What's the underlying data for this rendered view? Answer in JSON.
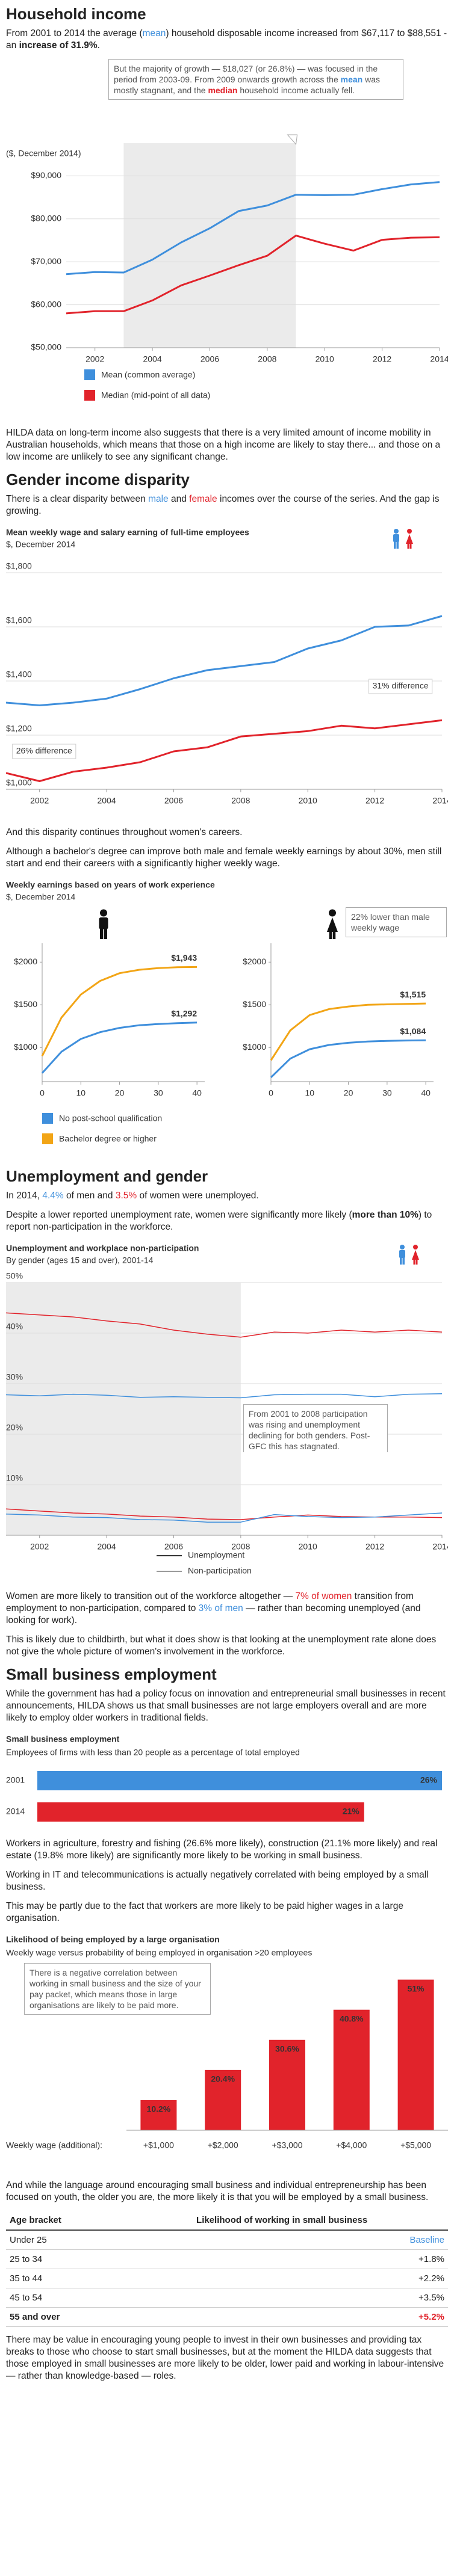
{
  "sections": [
    {
      "heading": "Household income",
      "paragraphs": [
        [
          "From 2001 to 2014 the average (",
          {
            "text": "mean",
            "color": "#3f8fdc"
          },
          ") household disposable income increased from $67,117 to $88,551 - an ",
          {
            "text": "increase of 31.9%",
            "bold": true
          },
          "."
        ],
        [
          "HILDA data on long-term income also suggests that there is a very limited amount of income mobility in Australian households, which means that those on a high income are likely to stay there... and those on a low income are unlikely to see any significant change."
        ]
      ]
    },
    {
      "heading": "Gender income disparity",
      "paragraphs": [
        [
          "There is a clear disparity between ",
          {
            "text": "male",
            "color": "#3f8fdc"
          },
          " and ",
          {
            "text": "female",
            "color": "#e1232b"
          },
          " incomes over the course of the series. And the gap is growing."
        ],
        [
          "And this disparity continues throughout women's careers."
        ],
        [
          "Although a bachelor's degree can improve both male and female weekly earnings by about 30%, men still start and end their careers with a significantly higher weekly wage."
        ]
      ]
    },
    {
      "heading": "Unemployment and gender",
      "paragraphs": [
        [
          "In 2014, ",
          {
            "text": "4.4%",
            "color": "#3f8fdc"
          },
          " of men and ",
          {
            "text": "3.5%",
            "color": "#e1232b"
          },
          " of women were unemployed."
        ],
        [
          "Despite a lower reported unemployment rate, women were significantly more likely (",
          {
            "text": "more than 10%",
            "bold": true
          },
          ") to report non-participation in the workforce."
        ],
        [
          "Women are more likely to transition out of the workforce altogether — ",
          {
            "text": "7% of women",
            "color": "#e1232b"
          },
          " transition from employment to non-participation, compared to ",
          {
            "text": "3% of men",
            "color": "#3f8fdc"
          },
          " — rather than becoming unemployed (and looking for work)."
        ],
        [
          "This is likely due to childbirth, but what it does show is that looking at the unemployment rate alone does not give the whole picture of women's involvement in the workforce."
        ]
      ]
    },
    {
      "heading": "Small business employment",
      "paragraphs": [
        [
          "While the government has had a policy focus on innovation and entrepreneurial small businesses in recent announcements, HILDA shows us that small businesses are not large employers overall and are more likely to employ older workers in traditional fields."
        ],
        [
          "Workers in agriculture, forestry and fishing (26.6% more likely), construction (21.1% more likely) and real estate (19.8% more likely) are significantly more likely to be working in small business."
        ],
        [
          "Working in IT and telecommunications is actually negatively correlated with being employed by a small business."
        ],
        [
          "This may be partly due to the fact that workers are more likely to be paid higher wages in a large organisation."
        ],
        [
          "And while the language around encouraging small business and individual entrepreneurship has been focused on youth, the older you are, the more likely it is that you will be employed by a small business."
        ],
        [
          "There may be value in encouraging young people to invest in their own businesses and providing tax breaks to those who choose to start small businesses, but at the moment the HILDA data suggests that those employed in small businesses are more likely to be older, lower paid and working in labour-intensive — rather than knowledge-based — roles."
        ]
      ]
    }
  ],
  "chart_data": [
    {
      "type": "line",
      "axis_label": "($, December 2014)",
      "annotation": [
        "But the majority of growth — $18,027 (or 26.8%) — was focused in the period from 2003-09. From 2009 onwards growth across the ",
        {
          "text": "mean",
          "color": "#3f8fdc",
          "bold": true
        },
        " was mostly stagnant, and the ",
        {
          "text": "median",
          "color": "#e1232b",
          "bold": true
        },
        " household income actually fell."
      ],
      "x": [
        2001,
        2002,
        2003,
        2004,
        2005,
        2006,
        2007,
        2008,
        2009,
        2010,
        2011,
        2012,
        2013,
        2014
      ],
      "series": [
        {
          "name": "Mean (common average)",
          "color": "#3f8fdc",
          "values": [
            67117,
            67600,
            67500,
            70500,
            74500,
            77800,
            81800,
            83100,
            85600,
            85500,
            85600,
            86900,
            88000,
            88551
          ]
        },
        {
          "name": "Median (mid-point of all data)",
          "color": "#e1232b",
          "values": [
            58000,
            58500,
            58500,
            61000,
            64500,
            66800,
            69200,
            71400,
            76100,
            74200,
            72600,
            75100,
            75600,
            75700
          ]
        }
      ],
      "shade": [
        2003,
        2009
      ],
      "xlim": [
        2001,
        2014
      ],
      "xticks": [
        2002,
        2004,
        2006,
        2008,
        2010,
        2012,
        2014
      ],
      "ylim": [
        50000,
        92000
      ],
      "yticks": [
        {
          "value": 50000,
          "label": "$50,000"
        },
        {
          "value": 60000,
          "label": "$60,000"
        },
        {
          "value": 70000,
          "label": "$70,000"
        },
        {
          "value": 80000,
          "label": "$80,000"
        },
        {
          "value": 90000,
          "label": "$90,000"
        }
      ],
      "grid": true
    },
    {
      "type": "line",
      "title": "Mean weekly wage and salary earning of full-time employees",
      "subtitle": "$, December 2014",
      "annotations": [
        "26% difference",
        "31% difference"
      ],
      "x": [
        2001,
        2002,
        2003,
        2004,
        2005,
        2006,
        2007,
        2008,
        2009,
        2010,
        2011,
        2012,
        2013,
        2014
      ],
      "series": [
        {
          "color": "#3f8fdc",
          "values": [
            1320,
            1310,
            1320,
            1335,
            1370,
            1410,
            1440,
            1455,
            1470,
            1520,
            1550,
            1600,
            1605,
            1640
          ]
        },
        {
          "color": "#e1232b",
          "values": [
            1060,
            1030,
            1065,
            1080,
            1100,
            1140,
            1155,
            1195,
            1205,
            1215,
            1235,
            1225,
            1240,
            1255
          ]
        }
      ],
      "xlim": [
        2001,
        2014
      ],
      "xticks": [
        2002,
        2004,
        2006,
        2008,
        2010,
        2012,
        2014
      ],
      "ylim": [
        1000,
        1800
      ],
      "yticks": [
        {
          "value": 1000,
          "label": "$1,000"
        },
        {
          "value": 1200,
          "label": "$1,200"
        },
        {
          "value": 1400,
          "label": "$1,400"
        },
        {
          "value": 1600,
          "label": "$1,600"
        },
        {
          "value": 1800,
          "label": "$1,800"
        }
      ],
      "grid": true
    },
    {
      "type": "line",
      "title": "Weekly earnings based on years of work experience",
      "subtitle": "$, December 2014",
      "x": [
        0,
        5,
        10,
        15,
        20,
        25,
        30,
        35,
        40
      ],
      "series": [
        {
          "name": "No post-school qualification",
          "color": "#3f8fdc",
          "values": [
            700,
            950,
            1100,
            1180,
            1230,
            1260,
            1275,
            1285,
            1292
          ],
          "value_labels": [
            null,
            null,
            null,
            null,
            null,
            null,
            null,
            null,
            "$1,292"
          ]
        },
        {
          "name": "Bachelor degree or higher",
          "color": "#f2a516",
          "values": [
            900,
            1350,
            1620,
            1780,
            1870,
            1910,
            1930,
            1940,
            1943
          ],
          "value_labels": [
            null,
            null,
            null,
            null,
            null,
            null,
            null,
            null,
            "$1,943"
          ]
        }
      ],
      "xlim": [
        0,
        42
      ],
      "xticks": [
        0,
        10,
        20,
        30,
        40
      ],
      "ylim": [
        600,
        2150
      ],
      "yticks": [
        {
          "value": 1000,
          "label": "$1000"
        },
        {
          "value": 1500,
          "label": "$1500"
        },
        {
          "value": 2000,
          "label": "$2000"
        }
      ],
      "grid": false
    },
    {
      "type": "line",
      "annotation": "22% lower than male weekly wage",
      "x": [
        0,
        5,
        10,
        15,
        20,
        25,
        30,
        35,
        40
      ],
      "series": [
        {
          "color": "#3f8fdc",
          "values": [
            650,
            870,
            980,
            1030,
            1055,
            1070,
            1078,
            1082,
            1084
          ],
          "value_labels": [
            null,
            null,
            null,
            null,
            null,
            null,
            null,
            null,
            "$1,084"
          ]
        },
        {
          "color": "#f2a516",
          "values": [
            850,
            1200,
            1380,
            1450,
            1480,
            1500,
            1505,
            1510,
            1515
          ],
          "value_labels": [
            null,
            null,
            null,
            null,
            null,
            null,
            null,
            null,
            "$1,515"
          ]
        }
      ],
      "xlim": [
        0,
        42
      ],
      "xticks": [
        0,
        10,
        20,
        30,
        40
      ],
      "ylim": [
        600,
        2150
      ],
      "yticks": [
        {
          "value": 1000,
          "label": "$1000"
        },
        {
          "value": 1500,
          "label": "$1500"
        },
        {
          "value": 2000,
          "label": "$2000"
        }
      ],
      "grid": false
    },
    {
      "type": "line",
      "title": "Unemployment and workplace non-participation",
      "subtitle": "By gender (ages 15 and over), 2001-14",
      "annotation": "From 2001 to 2008 participation was rising and unemployment declining for both genders. Post-GFC this has stagnated.",
      "legend": [
        {
          "label": "Unemployment",
          "color": "#333333"
        },
        {
          "label": "Non-participation",
          "color": "#9a9a9a"
        }
      ],
      "x": [
        2001,
        2002,
        2003,
        2004,
        2005,
        2006,
        2007,
        2008,
        2009,
        2010,
        2011,
        2012,
        2013,
        2014
      ],
      "series": [
        {
          "color": "#e1232b",
          "values": [
            44,
            43.6,
            43.2,
            42.4,
            41.8,
            40.6,
            39.8,
            39.2,
            40.2,
            40,
            40.6,
            40.2,
            40.6,
            40.2
          ]
        },
        {
          "color": "#3f8fdc",
          "values": [
            27.8,
            27.6,
            27.9,
            27.7,
            27.3,
            27.4,
            27.3,
            27.2,
            27.8,
            27.9,
            27.9,
            27.4,
            27.9,
            28
          ]
        },
        {
          "color": "#e1232b",
          "values": [
            5.2,
            4.8,
            4.4,
            4.2,
            3.8,
            3.6,
            3.2,
            3.1,
            3.6,
            4,
            3.7,
            3.6,
            3.6,
            3.5
          ]
        },
        {
          "color": "#3f8fdc",
          "values": [
            4.2,
            4,
            3.6,
            3.5,
            3.1,
            3,
            2.6,
            2.6,
            4.1,
            3.7,
            3.5,
            3.6,
            4,
            4.4
          ]
        }
      ],
      "shade": [
        2001,
        2008
      ],
      "xlim": [
        2001,
        2014
      ],
      "xticks": [
        2002,
        2004,
        2006,
        2008,
        2010,
        2012,
        2014
      ],
      "ylim": [
        0,
        50
      ],
      "yticks": [
        {
          "value": 10,
          "label": "10%"
        },
        {
          "value": 20,
          "label": "20%"
        },
        {
          "value": 30,
          "label": "30%"
        },
        {
          "value": 40,
          "label": "40%"
        },
        {
          "value": 50,
          "label": "50%"
        }
      ],
      "grid": true
    },
    {
      "type": "hbar",
      "title": "Small business employment",
      "subtitle": "Employees of firms with less than 20 people as a percentage of total employed",
      "categories": [
        "2001",
        "2014"
      ],
      "values": [
        26,
        21
      ],
      "value_labels": [
        "26%",
        "21%"
      ],
      "colors": [
        "#3f8fdc",
        "#e1232b"
      ],
      "xlim": [
        0,
        26
      ]
    },
    {
      "type": "bar",
      "title": "Likelihood of being employed by a large organisation",
      "subtitle": "Weekly wage versus probability of being employed in organisation >20 employees",
      "annotation": "There is a negative correlation between working in small business and the size of your pay packet, which means those in large organisations are likely to be paid more.",
      "x_label": "Weekly wage (additional):",
      "categories": [
        "+$1,000",
        "+$2,000",
        "+$3,000",
        "+$4,000",
        "+$5,000"
      ],
      "values": [
        10.2,
        20.4,
        30.6,
        40.8,
        51
      ],
      "value_labels": [
        "10.2%",
        "20.4%",
        "30.6%",
        "40.8%",
        "51%"
      ],
      "color": "#e1232b",
      "ylim": [
        0,
        55
      ]
    }
  ],
  "table": {
    "header": [
      "Age bracket",
      "Likelihood of working in small business"
    ],
    "rows": [
      [
        "Under 25",
        "Baseline"
      ],
      [
        "25 to 34",
        "+1.8%"
      ],
      [
        "35 to 44",
        "+2.2%"
      ],
      [
        "45 to 54",
        "+3.5%"
      ],
      [
        "55 and over",
        "+5.2%"
      ]
    ],
    "value_colors": [
      "#3f8fdc",
      null,
      null,
      null,
      "#e1232b"
    ],
    "bold_rows": [
      false,
      false,
      false,
      false,
      true
    ]
  }
}
